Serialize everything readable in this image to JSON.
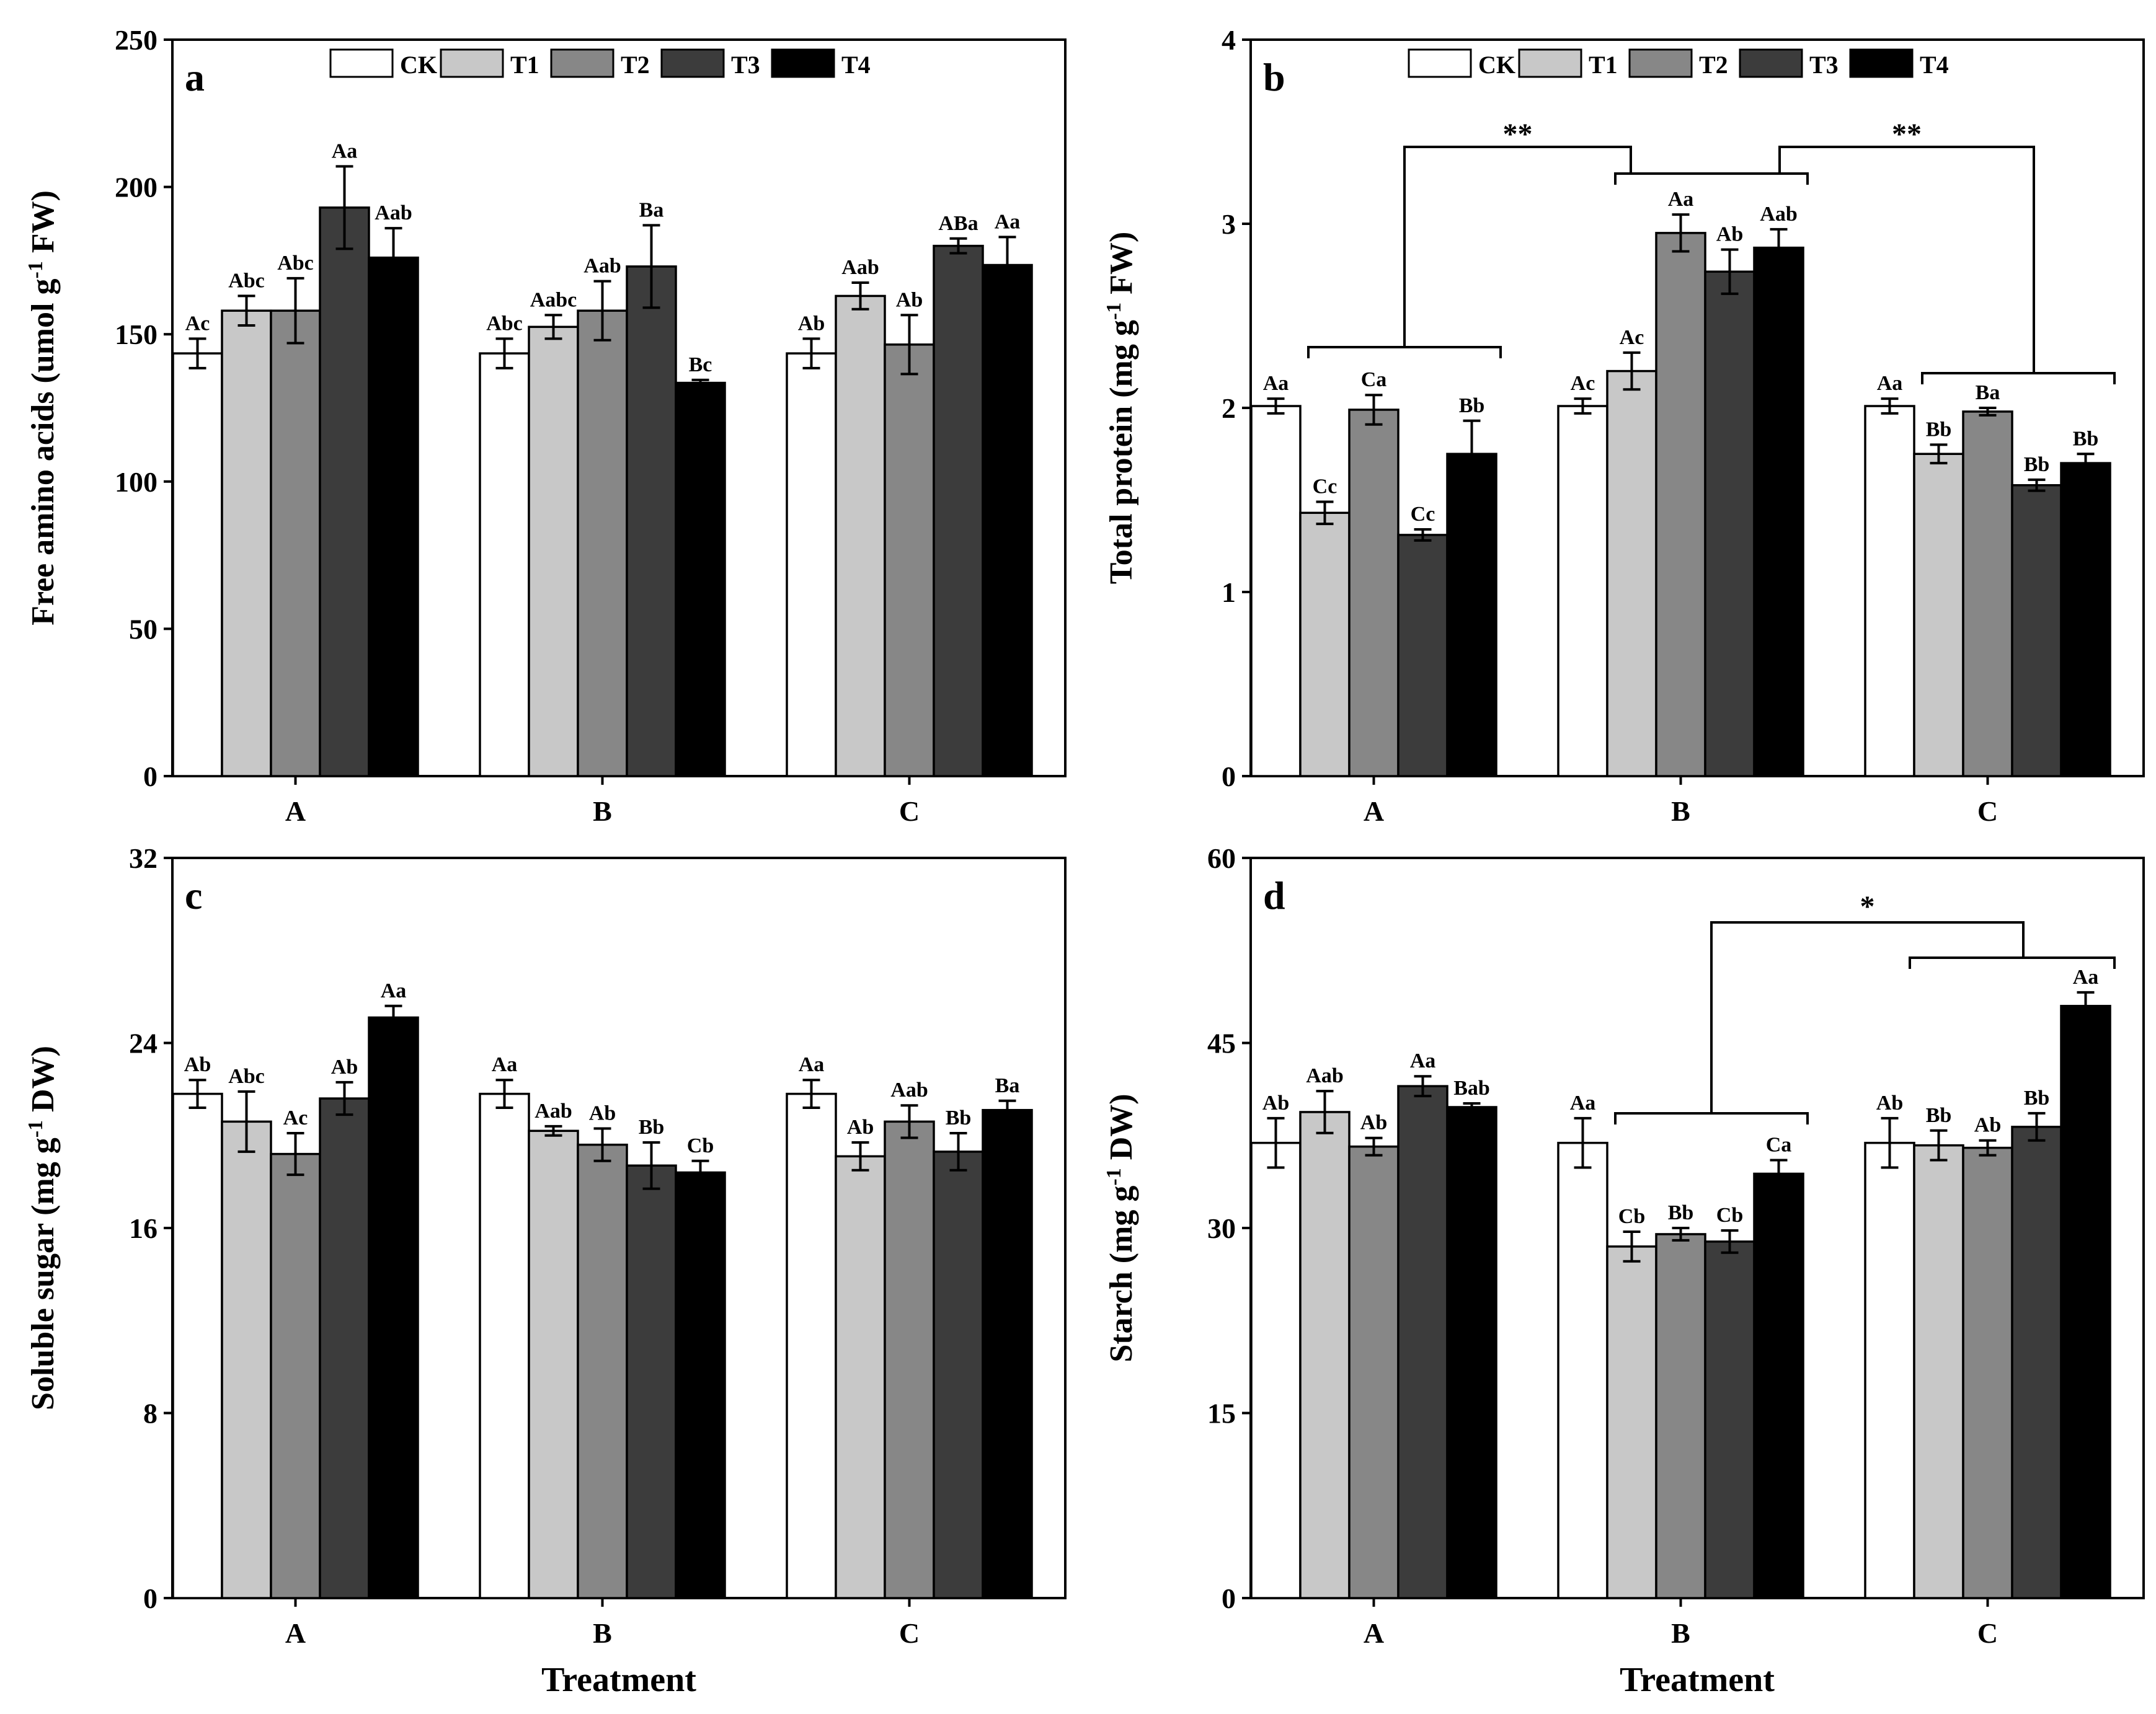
{
  "legend": [
    "CK",
    "T1",
    "T2",
    "T3",
    "T4"
  ],
  "series_colors": [
    "#ffffff",
    "#c8c8c8",
    "#878787",
    "#3c3c3c",
    "#000000"
  ],
  "categories": [
    "A",
    "B",
    "C"
  ],
  "xlabel": "Treatment",
  "chart_data": [
    {
      "type": "bar",
      "panel": "a",
      "ylabel_main": "Free amino acids (umol g",
      "ylabel_sup": "-1",
      "ylabel_end": " FW)",
      "ylim": [
        0,
        250
      ],
      "yticks": [
        0,
        50,
        100,
        150,
        200,
        250
      ],
      "categories": [
        "A",
        "B",
        "C"
      ],
      "xlabel": "",
      "series": [
        {
          "name": "CK",
          "values": [
            143.5,
            143.5,
            143.5
          ],
          "errors": [
            5,
            5,
            5
          ],
          "labels": [
            "Ac",
            "Abc",
            "Ab"
          ]
        },
        {
          "name": "T1",
          "values": [
            158,
            152.5,
            163
          ],
          "errors": [
            5,
            4,
            4.5
          ],
          "labels": [
            "Abc",
            "Aabc",
            "Aab"
          ]
        },
        {
          "name": "T2",
          "values": [
            158,
            158,
            146.5
          ],
          "errors": [
            11,
            10,
            10
          ],
          "labels": [
            "Abc",
            "Aab",
            "Ab"
          ]
        },
        {
          "name": "T3",
          "values": [
            193,
            173,
            180
          ],
          "errors": [
            14,
            14,
            2.5
          ],
          "labels": [
            "Aa",
            "Ba",
            "ABa"
          ]
        },
        {
          "name": "T4",
          "values": [
            176,
            133.5,
            173.5
          ],
          "errors": [
            10,
            1,
            9.5
          ],
          "labels": [
            "Aab",
            "Bc",
            "Aa"
          ]
        }
      ],
      "show_legend": true
    },
    {
      "type": "bar",
      "panel": "b",
      "ylabel_main": "Total protein (mg g",
      "ylabel_sup": "-1",
      "ylabel_end": " FW)",
      "ylim": [
        0,
        4
      ],
      "yticks": [
        0,
        1,
        2,
        3,
        4
      ],
      "categories": [
        "A",
        "B",
        "C"
      ],
      "xlabel": "",
      "series": [
        {
          "name": "CK",
          "values": [
            2.01,
            2.01,
            2.01
          ],
          "errors": [
            0.04,
            0.04,
            0.04
          ],
          "labels": [
            "Aa",
            "Ac",
            "Aa"
          ]
        },
        {
          "name": "T1",
          "values": [
            1.43,
            2.2,
            1.75
          ],
          "errors": [
            0.06,
            0.1,
            0.05
          ],
          "labels": [
            "Cc",
            "Ac",
            "Bb"
          ]
        },
        {
          "name": "T2",
          "values": [
            1.99,
            2.95,
            1.98
          ],
          "errors": [
            0.08,
            0.1,
            0.02
          ],
          "labels": [
            "Ca",
            "Aa",
            "Ba"
          ]
        },
        {
          "name": "T3",
          "values": [
            1.31,
            2.74,
            1.58
          ],
          "errors": [
            0.03,
            0.12,
            0.03
          ],
          "labels": [
            "Cc",
            "Ab",
            "Bb"
          ]
        },
        {
          "name": "T4",
          "values": [
            1.75,
            2.87,
            1.7
          ],
          "errors": [
            0.18,
            0.1,
            0.05
          ],
          "labels": [
            "Bb",
            "Aab",
            "Bb"
          ]
        }
      ],
      "significance": [
        {
          "text": "**",
          "groups": [
            0,
            1
          ]
        },
        {
          "text": "**",
          "groups": [
            1,
            2
          ]
        }
      ],
      "show_legend": true
    },
    {
      "type": "bar",
      "panel": "c",
      "ylabel_main": "Soluble sugar (mg g",
      "ylabel_sup": "-1",
      "ylabel_end": " DW)",
      "ylim": [
        0,
        32
      ],
      "yticks": [
        0,
        8,
        16,
        24,
        32
      ],
      "categories": [
        "A",
        "B",
        "C"
      ],
      "xlabel": "Treatment",
      "series": [
        {
          "name": "CK",
          "values": [
            21.8,
            21.8,
            21.8
          ],
          "errors": [
            0.6,
            0.6,
            0.6
          ],
          "labels": [
            "Ab",
            "Aa",
            "Aa"
          ]
        },
        {
          "name": "T1",
          "values": [
            20.6,
            20.2,
            19.1
          ],
          "errors": [
            1.3,
            0.2,
            0.6
          ],
          "labels": [
            "Abc",
            "Aab",
            "Ab"
          ]
        },
        {
          "name": "T2",
          "values": [
            19.2,
            19.6,
            20.6
          ],
          "errors": [
            0.9,
            0.7,
            0.7
          ],
          "labels": [
            "Ac",
            "Ab",
            "Aab"
          ]
        },
        {
          "name": "T3",
          "values": [
            21.6,
            18.7,
            19.3
          ],
          "errors": [
            0.7,
            1.0,
            0.8
          ],
          "labels": [
            "Ab",
            "Bb",
            "Bb"
          ]
        },
        {
          "name": "T4",
          "values": [
            25.1,
            18.4,
            21.1
          ],
          "errors": [
            0.5,
            0.5,
            0.4
          ],
          "labels": [
            "Aa",
            "Cb",
            "Ba"
          ]
        }
      ],
      "show_legend": false
    },
    {
      "type": "bar",
      "panel": "d",
      "ylabel_main": "Starch (mg g",
      "ylabel_sup": "-1",
      "ylabel_end": " DW)",
      "ylim": [
        0,
        60
      ],
      "yticks": [
        0,
        15,
        30,
        45,
        60
      ],
      "categories": [
        "A",
        "B",
        "C"
      ],
      "xlabel": "Treatment",
      "series": [
        {
          "name": "CK",
          "values": [
            36.9,
            36.9,
            36.9
          ],
          "errors": [
            2,
            2,
            2
          ],
          "labels": [
            "Ab",
            "Aa",
            "Ab"
          ]
        },
        {
          "name": "T1",
          "values": [
            39.4,
            28.5,
            36.7
          ],
          "errors": [
            1.7,
            1.2,
            1.2
          ],
          "labels": [
            "Aab",
            "Cb",
            "Bb"
          ]
        },
        {
          "name": "T2",
          "values": [
            36.6,
            29.5,
            36.5
          ],
          "errors": [
            0.7,
            0.5,
            0.6
          ],
          "labels": [
            "Ab",
            "Bb",
            "Ab"
          ]
        },
        {
          "name": "T3",
          "values": [
            41.5,
            28.9,
            38.2
          ],
          "errors": [
            0.8,
            0.9,
            1.1
          ],
          "labels": [
            "Aa",
            "Cb",
            "Bb"
          ]
        },
        {
          "name": "T4",
          "values": [
            39.8,
            34.4,
            48
          ],
          "errors": [
            0.3,
            1.1,
            1.1
          ],
          "labels": [
            "Bab",
            "Ca",
            "Aa"
          ]
        }
      ],
      "significance": [
        {
          "text": "*",
          "groups": [
            1,
            2
          ]
        }
      ],
      "show_legend": false
    }
  ]
}
